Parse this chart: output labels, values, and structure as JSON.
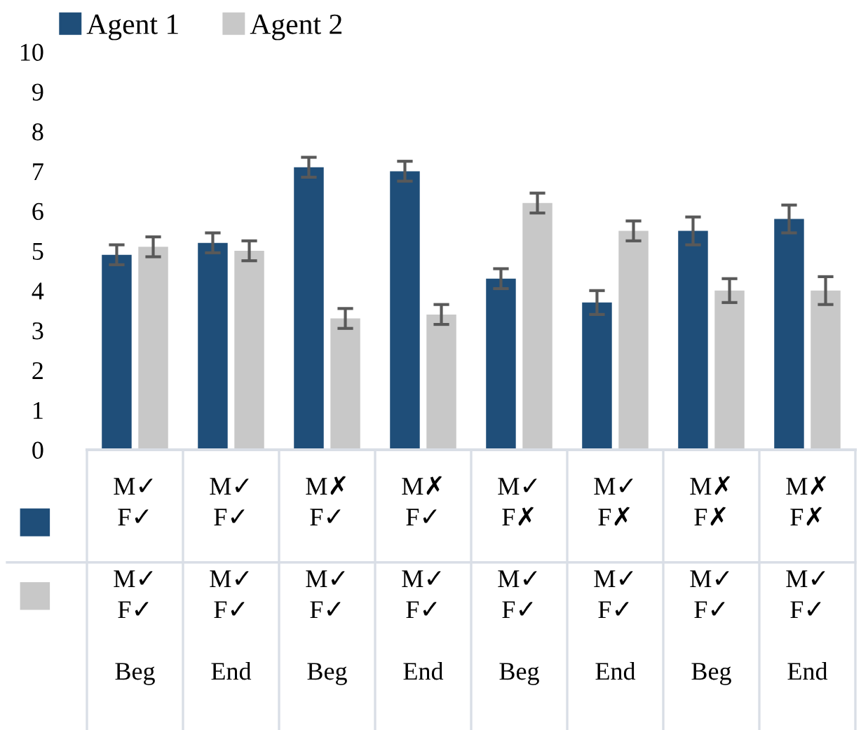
{
  "chart_data": {
    "type": "bar",
    "categories": [
      "M✓\nF✓\n\nM✓\nF✓\n\nBeg",
      "M✓\nF✓\n\nM✓\nF✓\n\nEnd",
      "M✗\nF✓\n\nM✓\nF✓\n\nBeg",
      "M✗\nF✓\n\nM✓\nF✓\n\nEnd",
      "M✓\nF✗\n\nM✓\nF✓\n\nBeg",
      "M✓\nF✗\n\nM✓\nF✓\n\nEnd",
      "M✗\nF✗\n\nM✓\nF✓\n\nBeg",
      "M✗\nF✗\n\nM✓\nF✓\n\nEnd"
    ],
    "series": [
      {
        "name": "Agent 1",
        "color": "#1f4e79",
        "values": [
          4.9,
          5.2,
          7.1,
          7.0,
          4.3,
          3.7,
          5.5,
          5.8
        ],
        "errors": [
          0.25,
          0.25,
          0.25,
          0.25,
          0.25,
          0.3,
          0.35,
          0.35
        ]
      },
      {
        "name": "Agent 2",
        "color": "#c8c8c8",
        "values": [
          5.1,
          5.0,
          3.3,
          3.4,
          6.2,
          5.5,
          4.0,
          4.0
        ],
        "errors": [
          0.25,
          0.25,
          0.25,
          0.25,
          0.25,
          0.25,
          0.3,
          0.35
        ]
      }
    ],
    "ylim": [
      0,
      10
    ],
    "yticks": [
      0,
      1,
      2,
      3,
      4,
      5,
      6,
      7,
      8,
      9,
      10
    ],
    "grid": false,
    "legend": "top left"
  }
}
